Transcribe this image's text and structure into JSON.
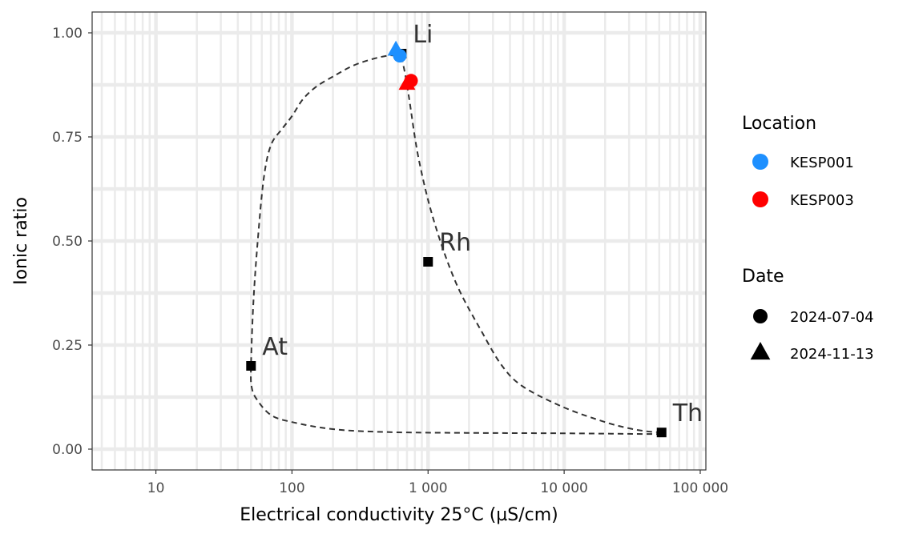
{
  "chart_data": {
    "type": "scatter",
    "xlabel": "Electrical conductivity 25°C (µS/cm)",
    "ylabel": "Ionic ratio",
    "x_scale": "log",
    "xlim": [
      3.4,
      110000
    ],
    "ylim": [
      -0.05,
      1.05
    ],
    "x_ticks": [
      {
        "value": 10,
        "label": "10"
      },
      {
        "value": 100,
        "label": "100"
      },
      {
        "value": 1000,
        "label": "1 000"
      },
      {
        "value": 10000,
        "label": "10 000"
      },
      {
        "value": 100000,
        "label": "100 000"
      }
    ],
    "y_ticks": [
      {
        "value": 0,
        "label": "0.00"
      },
      {
        "value": 0.25,
        "label": "0.25"
      },
      {
        "value": 0.5,
        "label": "0.50"
      },
      {
        "value": 0.75,
        "label": "0.75"
      },
      {
        "value": 1,
        "label": "1.00"
      }
    ],
    "grid": true,
    "reference_points": [
      {
        "label": "Li",
        "x": 640,
        "y": 0.95
      },
      {
        "label": "Rh",
        "x": 1000,
        "y": 0.45
      },
      {
        "label": "At",
        "x": 50,
        "y": 0.2
      },
      {
        "label": "Th",
        "x": 52000,
        "y": 0.04
      }
    ],
    "curve": {
      "style": "dashed",
      "points": [
        [
          52000,
          0.04
        ],
        [
          40000,
          0.043
        ],
        [
          30000,
          0.05
        ],
        [
          20000,
          0.065
        ],
        [
          10000,
          0.1
        ],
        [
          5000,
          0.15
        ],
        [
          3500,
          0.2
        ],
        [
          2500,
          0.28
        ],
        [
          1600,
          0.4
        ],
        [
          1100,
          0.55
        ],
        [
          850,
          0.7
        ],
        [
          720,
          0.85
        ],
        [
          660,
          0.92
        ],
        [
          620,
          0.94
        ],
        [
          500,
          0.945
        ],
        [
          300,
          0.925
        ],
        [
          200,
          0.895
        ],
        [
          150,
          0.87
        ],
        [
          120,
          0.84
        ],
        [
          100,
          0.8
        ],
        [
          85,
          0.77
        ],
        [
          70,
          0.73
        ],
        [
          62,
          0.65
        ],
        [
          56,
          0.5
        ],
        [
          52,
          0.35
        ],
        [
          50,
          0.2
        ],
        [
          50.5,
          0.15
        ],
        [
          55,
          0.12
        ],
        [
          70,
          0.082
        ],
        [
          100,
          0.065
        ],
        [
          200,
          0.048
        ],
        [
          500,
          0.041
        ],
        [
          2000,
          0.039
        ],
        [
          10000,
          0.038
        ],
        [
          52000,
          0.036
        ]
      ]
    },
    "series": [
      {
        "location": "KESP001",
        "date": "2024-07-04",
        "shape": "circle",
        "x": 620,
        "y": 0.945
      },
      {
        "location": "KESP001",
        "date": "2024-11-13",
        "shape": "triangle",
        "x": 580,
        "y": 0.96
      },
      {
        "location": "KESP003",
        "date": "2024-07-04",
        "shape": "circle",
        "x": 750,
        "y": 0.885
      },
      {
        "location": "KESP003",
        "date": "2024-11-13",
        "shape": "triangle",
        "x": 700,
        "y": 0.878
      }
    ],
    "colors": {
      "KESP001": "#1e90ff",
      "KESP003": "#ff0000",
      "reference": "#000000"
    }
  },
  "legend": {
    "location_title": "Location",
    "location_items": [
      {
        "label": "KESP001",
        "color": "#1e90ff"
      },
      {
        "label": "KESP003",
        "color": "#ff0000"
      }
    ],
    "date_title": "Date",
    "date_items": [
      {
        "label": "2024-07-04",
        "shape": "circle"
      },
      {
        "label": "2024-11-13",
        "shape": "triangle"
      }
    ],
    "placement": "right"
  }
}
